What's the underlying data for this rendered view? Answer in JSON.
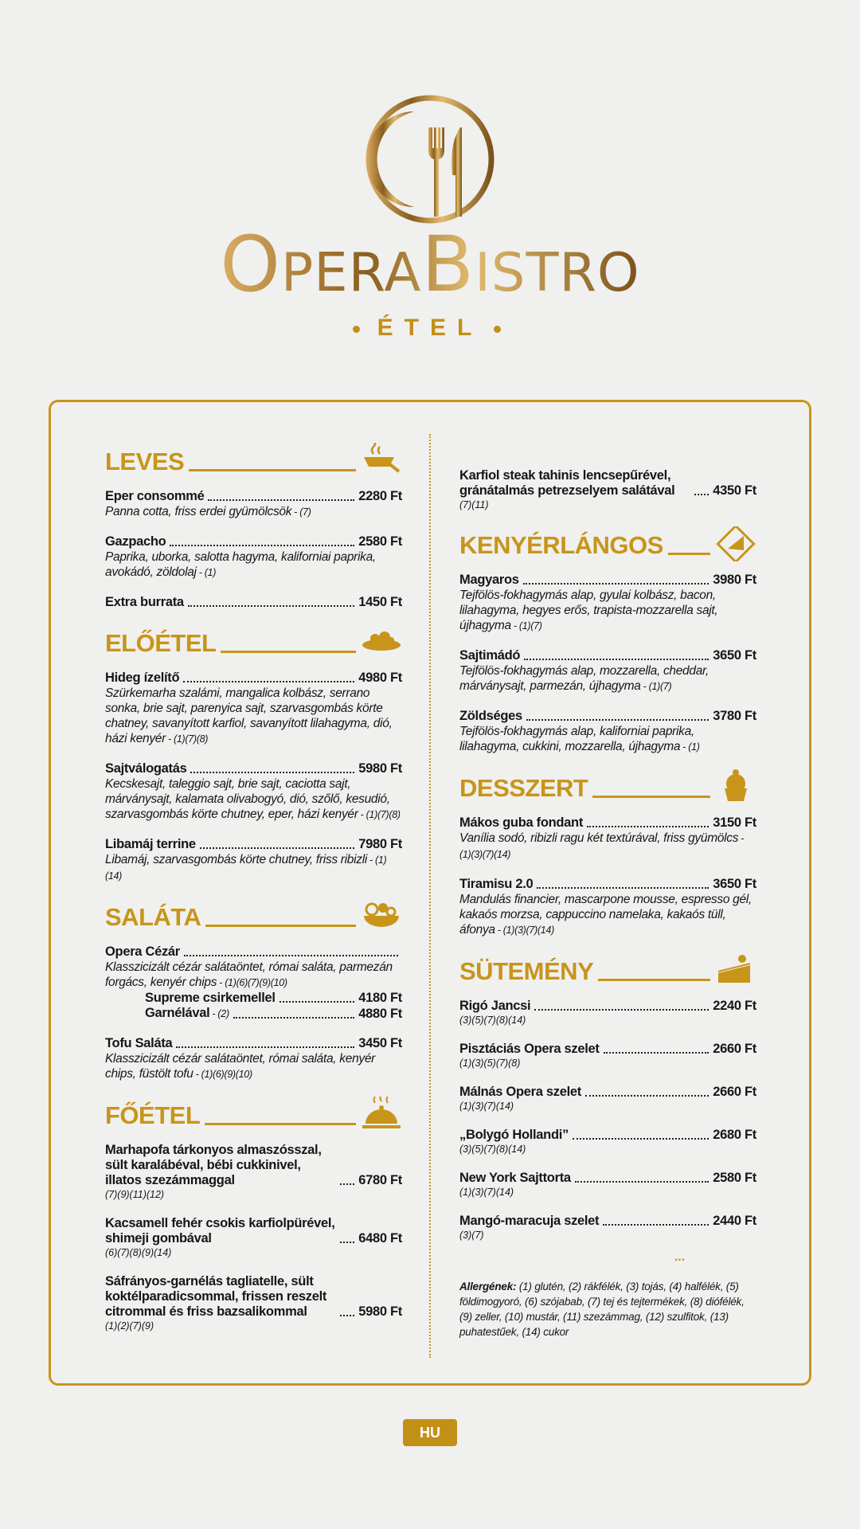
{
  "header": {
    "logo": "OperaBistro",
    "subtitle": "ÉTEL"
  },
  "left": [
    {
      "heading": "LEVES",
      "items": [
        {
          "name": "Eper consommé",
          "price": "2280 Ft",
          "desc": "Panna cotta, friss erdei gyümölcsök",
          "allergens": "- (7)"
        },
        {
          "name": "Gazpacho",
          "price": "2580 Ft",
          "desc": "Paprika, uborka, salotta hagyma, kaliforniai paprika, avokádó, zöldolaj",
          "allergens": "- (1)"
        },
        {
          "name": "Extra burrata",
          "price": "1450 Ft"
        }
      ]
    },
    {
      "heading": "ELŐÉTEL",
      "items": [
        {
          "name": "Hideg ízelítő",
          "price": "4980 Ft",
          "desc": "Szürkemarha szalámi, mangalica kolbász, serrano sonka, brie sajt, parenyica sajt, szarvasgombás körte chatney, savanyított karfiol, savanyított lilahagyma, dió, házi kenyér",
          "allergens": "- (1)(7)(8)"
        },
        {
          "name": "Sajtválogatás",
          "price": "5980 Ft",
          "desc": "Kecskesajt, taleggio sajt, brie sajt, caciotta sajt, márványsajt, kalamata olivabogyó, dió, szőlő, kesudió, szarvasgombás körte chutney, eper, házi kenyér",
          "allergens": "- (1)(7)(8)"
        },
        {
          "name": "Libamáj terrine",
          "price": "7980 Ft",
          "desc": "Libamáj, szarvasgombás körte chutney, friss ribizli",
          "allergens": "- (1)(14)"
        }
      ]
    },
    {
      "heading": "SALÁTA",
      "items": [
        {
          "name": "Opera Cézár",
          "desc": "Klasszicizált cézár salátaöntet, római saláta, parmezán forgács, kenyér chips",
          "allergens": "- (1)(6)(7)(9)(10)",
          "options": [
            {
              "name": "Supreme csirkemellel",
              "price": "4180 Ft"
            },
            {
              "name": "Garnélával",
              "allergens": "- (2)",
              "price": "4880 Ft"
            }
          ]
        },
        {
          "name": "Tofu Saláta",
          "price": "3450 Ft",
          "desc": "Klasszicizált cézár salátaöntet, római saláta, kenyér chips, füstölt tofu",
          "allergens": "- (1)(6)(9)(10)"
        }
      ]
    },
    {
      "heading": "FŐÉTEL",
      "items": [
        {
          "name": "Marhapofa tárkonyos almaszósszal, sült karalábéval, bébi cukkinivel, illatos szezámmaggal",
          "price": "6780 Ft",
          "allergens": "(7)(9)(11)(12)"
        },
        {
          "name": "Kacsamell fehér csokis karfiolpürével, shimeji gombával",
          "price": "6480 Ft",
          "allergens": "(6)(7)(8)(9)(14)"
        },
        {
          "name": "Sáfrányos-garnélás tagliatelle, sült koktélparadicsommal, frissen reszelt citrommal és friss bazsalikommal",
          "price": "5980 Ft",
          "allergens": "(1)(2)(7)(9)"
        }
      ]
    }
  ],
  "right": {
    "continued": [
      {
        "name": "Karfiol steak tahinis lencsepűrével, gránátalmás petrezselyem salátával",
        "price": "4350 Ft",
        "allergens": "(7)(11)"
      }
    ],
    "sections": [
      {
        "heading": "KENYÉRLÁNGOS",
        "items": [
          {
            "name": "Magyaros",
            "price": "3980 Ft",
            "desc": "Tejfölös-fokhagymás alap, gyulai kolbász, bacon, lilahagyma, hegyes erős, trapista-mozzarella sajt, újhagyma",
            "allergens": "- (1)(7)"
          },
          {
            "name": "Sajtimádó",
            "price": "3650 Ft",
            "desc": "Tejfölös-fokhagymás alap, mozzarella, cheddar, márványsajt, parmezán, újhagyma",
            "allergens": "- (1)(7)"
          },
          {
            "name": "Zöldséges",
            "price": "3780 Ft",
            "desc": "Tejfölös-fokhagymás alap, kaliforniai paprika, lilahagyma, cukkini, mozzarella, újhagyma",
            "allergens": "- (1)"
          }
        ]
      },
      {
        "heading": "DESSZERT",
        "items": [
          {
            "name": "Mákos guba fondant",
            "price": "3150 Ft",
            "desc": "Vanília sodó, ribizli ragu két textúrával, friss gyümölcs",
            "allergens": "- (1)(3)(7)(14)"
          },
          {
            "name": "Tiramisu 2.0",
            "price": "3650 Ft",
            "desc": "Mandulás financier, mascarpone mousse, espresso gél, kakaós morzsa, cappuccino namelaka, kakaós tüll, áfonya",
            "allergens": "- (1)(3)(7)(14)"
          }
        ]
      },
      {
        "heading": "SÜTEMÉNY",
        "items": [
          {
            "name": "Rigó Jancsi",
            "price": "2240 Ft",
            "allergens": "(3)(5)(7)(8)(14)"
          },
          {
            "name": "Pisztáciás Opera szelet",
            "price": "2660 Ft",
            "allergens": "(1)(3)(5)(7)(8)"
          },
          {
            "name": "Málnás Opera szelet",
            "price": "2660 Ft",
            "allergens": "(1)(3)(7)(14)"
          },
          {
            "name": "„Bolygó Hollandi”",
            "price": "2680 Ft",
            "allergens": "(3)(5)(7)(8)(14)"
          },
          {
            "name": "New York Sajttorta",
            "price": "2580 Ft",
            "allergens": "(1)(3)(7)(14)"
          },
          {
            "name": "Mangó-maracuja szelet",
            "price": "2440 Ft",
            "allergens": "(3)(7)"
          }
        ]
      }
    ],
    "more": "...",
    "allergen_note": {
      "label": "Allergének:",
      "text": "(1) glutén, (2) rákfélék, (3) tojás, (4) halfélék, (5) földimogyoró, (6) szójabab, (7) tej és tejtermékek, (8) diófélék, (9) zeller, (10) mustár, (11) szezámmag, (12) szulfitok, (13) puhatestűek, (14) cukor"
    }
  },
  "footer": {
    "language": "HU"
  }
}
